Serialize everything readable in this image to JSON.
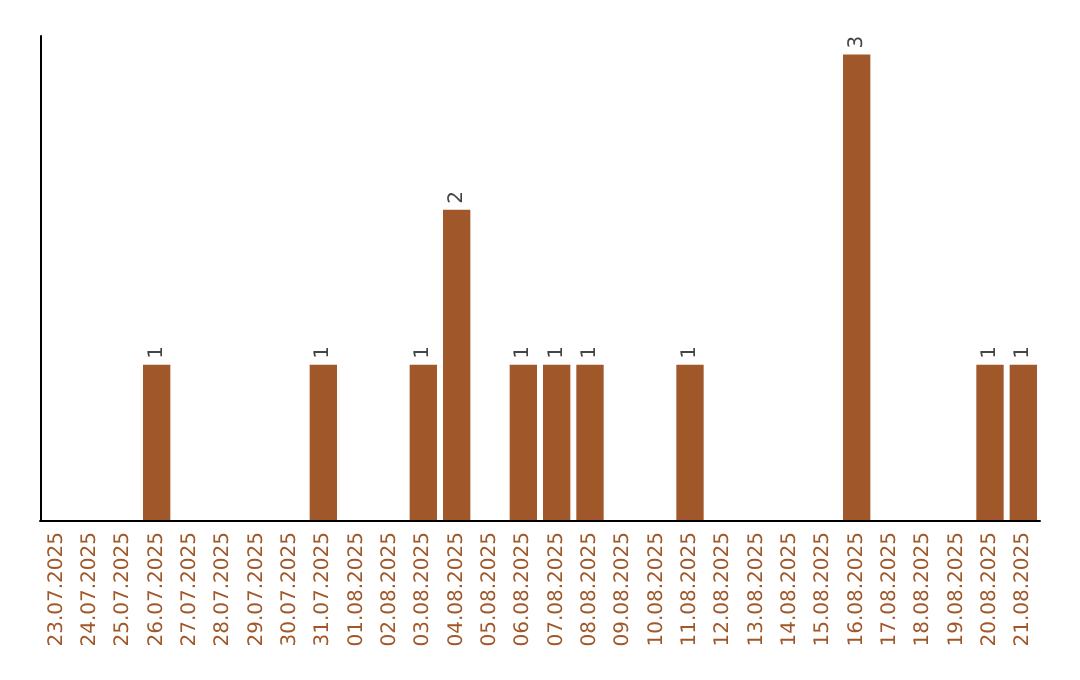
{
  "chart_data": {
    "type": "bar",
    "categories": [
      "23.07.2025",
      "24.07.2025",
      "25.07.2025",
      "26.07.2025",
      "27.07.2025",
      "28.07.2025",
      "29.07.2025",
      "30.07.2025",
      "31.07.2025",
      "01.08.2025",
      "02.08.2025",
      "03.08.2025",
      "04.08.2025",
      "05.08.2025",
      "06.08.2025",
      "07.08.2025",
      "08.08.2025",
      "09.08.2025",
      "10.08.2025",
      "11.08.2025",
      "12.08.2025",
      "13.08.2025",
      "14.08.2025",
      "15.08.2025",
      "16.08.2025",
      "17.08.2025",
      "18.08.2025",
      "19.08.2025",
      "20.08.2025",
      "21.08.2025"
    ],
    "values": [
      0,
      0,
      0,
      1,
      0,
      0,
      0,
      0,
      1,
      0,
      0,
      1,
      2,
      0,
      1,
      1,
      1,
      0,
      0,
      1,
      0,
      0,
      0,
      0,
      3,
      0,
      0,
      0,
      1,
      1
    ],
    "value_labels": [
      null,
      null,
      null,
      "1",
      null,
      null,
      null,
      null,
      "1",
      null,
      null,
      "1",
      "2",
      null,
      "1",
      "1",
      "1",
      null,
      null,
      "1",
      null,
      null,
      null,
      null,
      "3",
      null,
      null,
      null,
      "1",
      "1"
    ],
    "color": "#a0582a",
    "tick_labels": "x"
  }
}
